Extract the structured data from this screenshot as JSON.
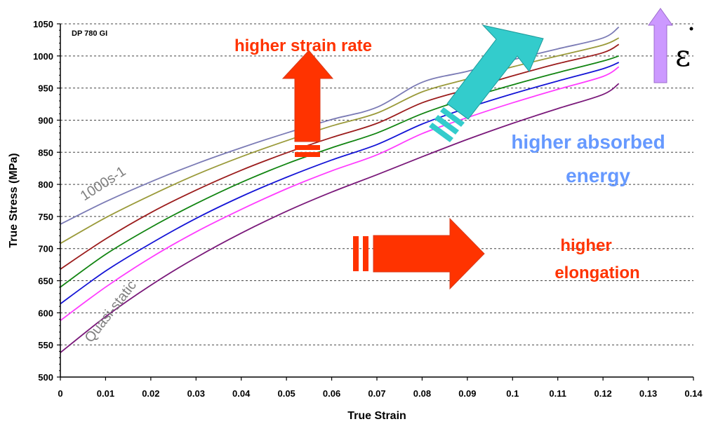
{
  "chart_data": {
    "type": "line",
    "title": "DP 780 GI",
    "xlabel": "True Strain",
    "ylabel": "True Stress (MPa)",
    "xlim": [
      0,
      0.14
    ],
    "ylim": [
      500,
      1050
    ],
    "x_ticks": [
      "0",
      "0.01",
      "0.02",
      "0.03",
      "0.04",
      "0.05",
      "0.06",
      "0.07",
      "0.08",
      "0.09",
      "0.1",
      "0.11",
      "0.12",
      "0.13",
      "0.14"
    ],
    "y_ticks": [
      "500",
      "550",
      "600",
      "650",
      "700",
      "750",
      "800",
      "850",
      "900",
      "950",
      "1000",
      "1050"
    ],
    "grid": "horizontal dashed",
    "x": [
      0,
      0.01,
      0.02,
      0.03,
      0.04,
      0.05,
      0.06,
      0.07,
      0.08,
      0.09,
      0.1,
      0.11,
      0.12,
      0.1235
    ],
    "series": [
      {
        "color": "#7b7bb5",
        "values": [
          738,
          773,
          804,
          832,
          857,
          880,
          901,
          920,
          959,
          976,
          994,
          1011,
          1028,
          1045
        ]
      },
      {
        "color": "#9a9a3a",
        "values": [
          708,
          748,
          783,
          815,
          843,
          868,
          891,
          911,
          944,
          964,
          983,
          1000,
          1017,
          1028
        ]
      },
      {
        "color": "#9b1c1c",
        "values": [
          668,
          715,
          756,
          791,
          822,
          849,
          873,
          895,
          927,
          948,
          969,
          988,
          1005,
          1018
        ]
      },
      {
        "color": "#128512",
        "values": [
          640,
          691,
          733,
          770,
          803,
          832,
          857,
          880,
          910,
          934,
          955,
          974,
          992,
          1000
        ]
      },
      {
        "color": "#1414d6",
        "values": [
          614,
          665,
          708,
          747,
          781,
          811,
          838,
          862,
          894,
          919,
          941,
          961,
          980,
          990
        ]
      },
      {
        "color": "#ff3cff",
        "values": [
          588,
          640,
          686,
          726,
          761,
          793,
          821,
          846,
          879,
          904,
          927,
          948,
          968,
          983
        ]
      },
      {
        "color": "#7a197a",
        "values": [
          538,
          594,
          643,
          686,
          724,
          758,
          788,
          815,
          843,
          870,
          895,
          918,
          940,
          957
        ]
      }
    ],
    "annotations": {
      "series_top": "1000s-1",
      "series_bottom": "Quasi-static",
      "strain_rate": "higher strain rate",
      "energy_line1": "higher absorbed",
      "energy_line2": "energy",
      "elong_line1": "higher",
      "elong_line2": "elongation",
      "epsilon_dot": "ε"
    },
    "colors": {
      "red_arrow": "#ff3300",
      "teal_arrow": "#33cccc",
      "violet_arrow": "#cc99ff",
      "blue_text": "#6699ff",
      "grey_text": "#808080"
    }
  }
}
